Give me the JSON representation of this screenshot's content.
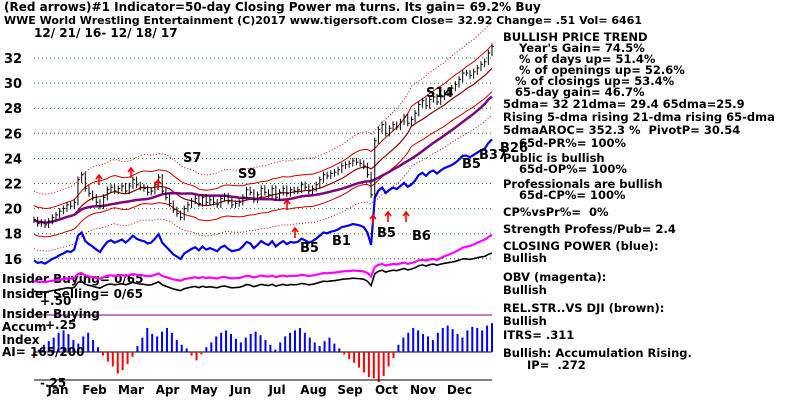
{
  "header": {
    "line1": "(Red arrows)#1 Indicator=50-day Closing Power ma turns. Its gain= 69.2% Buy",
    "line2": "WWE  World Wrestling Entertainment  (C)2017 www.tigersoft.com     Close=  32.92  Change= .51 Vol= 6461",
    "dates": "12/ 21/ 16- 12/ 18/ 17"
  },
  "chart_data": {
    "type": "line",
    "title": "WWE  World Wrestling Entertainment",
    "date_range": "12/ 21/ 16- 12/ 18/ 17",
    "months": [
      "Jan",
      "Feb",
      "Mar",
      "Apr",
      "May",
      "Jun",
      "Jul",
      "Aug",
      "Sep",
      "Oct",
      "Nov",
      "Dec"
    ],
    "y_ticks": [
      32,
      30,
      28,
      26,
      24,
      22,
      20,
      18,
      16
    ],
    "ylim": [
      15,
      33.5
    ],
    "grid": true,
    "price_series": {
      "name": "Close",
      "t": [
        0,
        2,
        4,
        6,
        8,
        10,
        12,
        14,
        16,
        18,
        20,
        22,
        24,
        26,
        28,
        30,
        32,
        34,
        36,
        38,
        40,
        42,
        44,
        46,
        48,
        50,
        52,
        54,
        56,
        58,
        60,
        62,
        64,
        66,
        68,
        70,
        72,
        74,
        76,
        78,
        80,
        82,
        84,
        86,
        88,
        90,
        92,
        94,
        96,
        98,
        100,
        102,
        104,
        106,
        108,
        110,
        112,
        114,
        116,
        118,
        120,
        122,
        124,
        126,
        128,
        130,
        132,
        134,
        136,
        138,
        140,
        142,
        144,
        146,
        148,
        150,
        152,
        154,
        156,
        158,
        160,
        162,
        164,
        166,
        168,
        170,
        172,
        174,
        176,
        178,
        180,
        182,
        184,
        186,
        188,
        190,
        192,
        194,
        196,
        198,
        200,
        202,
        204,
        206,
        208,
        210,
        212,
        214,
        216,
        218,
        220,
        222,
        224,
        226,
        228,
        230,
        232,
        234,
        236,
        238,
        240,
        242,
        244,
        246,
        248,
        250
      ],
      "y": [
        19.1,
        18.8,
        18.9,
        18.7,
        19.0,
        19.3,
        19.5,
        19.8,
        20.0,
        20.3,
        20.2,
        20.5,
        22.3,
        22.7,
        21.6,
        21.2,
        20.9,
        20.5,
        20.2,
        20.9,
        21.5,
        21.7,
        21.4,
        21.6,
        21.8,
        21.4,
        21.8,
        22.3,
        21.9,
        21.7,
        21.6,
        21.3,
        21.4,
        21.9,
        22.5,
        21.4,
        20.9,
        20.4,
        19.9,
        19.6,
        19.3,
        20.0,
        20.3,
        20.6,
        20.8,
        20.4,
        20.9,
        20.5,
        20.7,
        20.5,
        20.3,
        20.8,
        21.0,
        20.6,
        20.3,
        20.4,
        20.5,
        20.9,
        21.5,
        21.3,
        20.7,
        21.1,
        21.6,
        21.3,
        21.1,
        21.6,
        20.9,
        21.3,
        21.6,
        21.2,
        21.5,
        21.4,
        21.5,
        21.9,
        21.7,
        21.4,
        21.6,
        21.9,
        22.3,
        22.7,
        22.6,
        22.8,
        22.9,
        23.1,
        23.4,
        23.5,
        23.6,
        23.8,
        23.7,
        23.6,
        23.4,
        22.7,
        21.1,
        25.4,
        26.3,
        26.7,
        26.0,
        26.4,
        26.7,
        26.5,
        26.9,
        27.3,
        26.8,
        27.1,
        27.6,
        28.3,
        28.6,
        28.2,
        28.7,
        28.9,
        28.5,
        28.9,
        29.2,
        29.4,
        29.6,
        29.9,
        30.3,
        30.8,
        30.8,
        30.6,
        30.9,
        31.2,
        31.5,
        31.7,
        32.4,
        32.92
      ]
    },
    "ma_21_label": "21dma= 29.4",
    "ma_65_label": "65dma=25.9",
    "signals": [
      {
        "label": "S7",
        "color": "#000000"
      },
      {
        "label": "S9",
        "color": "#000000"
      },
      {
        "label": "S14",
        "color": "#000000"
      },
      {
        "label": "B5",
        "color": "#000000"
      },
      {
        "label": "B1",
        "color": "#000000"
      },
      {
        "label": "B5",
        "color": "#000000"
      },
      {
        "label": "B6",
        "color": "#000000"
      },
      {
        "label": "B5",
        "color": "#000000"
      },
      {
        "label": "B37",
        "color": "#000000"
      },
      {
        "label": "B26",
        "color": "#000000"
      }
    ],
    "lower_panel": {
      "labels": [
        "Insider Buying= 0/65",
        "Insider Selling= 0/65",
        "Insider Buying",
        "+.50",
        "Accum",
        "+.25",
        "Index",
        "AI= 165/200",
        "-.25"
      ],
      "accum_index_values": [
        -0.05,
        0.02,
        0.06,
        0.09,
        0.12,
        0.16,
        0.18,
        0.15,
        0.1,
        0.07,
        0.13,
        0.16,
        0.1,
        0.04,
        -0.03,
        -0.08,
        -0.12,
        -0.18,
        -0.15,
        -0.1,
        -0.04,
        0.05,
        0.12,
        0.2,
        0.15,
        0.13,
        0.17,
        0.2,
        0.16,
        0.1,
        0.06,
        0.03,
        -0.03,
        -0.07,
        -0.02,
        0.04,
        0.08,
        0.13,
        0.16,
        0.18,
        0.15,
        0.11,
        0.08,
        0.12,
        0.15,
        0.17,
        0.14,
        0.1,
        0.06,
        0.02,
        0.08,
        0.13,
        0.16,
        0.18,
        0.2,
        0.16,
        0.12,
        0.08,
        0.05,
        0.09,
        0.12,
        0.07,
        0.03,
        -0.02,
        -0.06,
        -0.09,
        -0.13,
        -0.17,
        -0.21,
        -0.22,
        -0.25,
        -0.2,
        -0.12,
        -0.05,
        0.06,
        0.12,
        0.16,
        0.2,
        0.18,
        0.15,
        0.13,
        0.1,
        0.16,
        0.2,
        0.22,
        0.19,
        0.15,
        0.12,
        0.18,
        0.21,
        0.2,
        0.18,
        0.22,
        0.24
      ]
    },
    "colors": {
      "price": "#000000",
      "ma": "#8b0000",
      "band": "#cc0000",
      "closing_power": "#0000ee",
      "obv": "#ff00ff",
      "relstr": "#8b4513",
      "accum_pos": "#0000ff",
      "accum_neg": "#ff0000",
      "accum_line": "#000000",
      "buy_arrow": "#ff0000",
      "grid": "#008000",
      "insider_line": "#800080"
    }
  },
  "right_panel": {
    "lines": [
      "BULLISH PRICE TREND",
      "    Year's Gain= 74.5%",
      "    % of days up= 51.4%",
      "    % of openings up= 52.6%",
      "   % of closings up= 53.4%",
      "   65-day gain= 46.7%",
      "5dma= 32 21dma= 29.4 65dma=25.9",
      "Rising 5-dma rising 21-dma rising 65-dma",
      "5dmaAROC= 352.3 %  PivotP= 30.54",
      "    65d-PR%= 100%",
      "Public is bullish",
      "    65d-OP%= 100%",
      "Professionals are bullish",
      "    65d-CP%= 100%",
      "CP%vsPr%=  0%",
      "Strength Profess/Pub= 2.4",
      "CLOSING POWER (blue):",
      "Bullish",
      "OBV (magenta):",
      "Bullish",
      "REL.STR..VS DJI (brown):",
      "Bullish",
      "ITRS= .311",
      "Bullish: Accumulation Rising.",
      "      IP=  .272"
    ]
  }
}
